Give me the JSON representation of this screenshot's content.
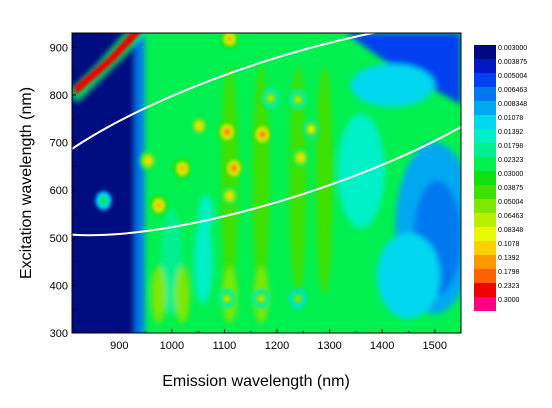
{
  "chart_data": {
    "type": "heatmap",
    "title": "",
    "xlabel": "Emission wavelength  (nm)",
    "ylabel": "Excitation wavelength  (nm)",
    "xlim": [
      810,
      1550
    ],
    "ylim": [
      300,
      930
    ],
    "x_ticks": [
      900,
      1000,
      1100,
      1200,
      1300,
      1400,
      1500
    ],
    "y_ticks": [
      300,
      400,
      500,
      600,
      700,
      800,
      900
    ],
    "legend_position": "right",
    "color_levels": [
      {
        "label": "0.003000",
        "color": "#000a80"
      },
      {
        "label": "0.003875",
        "color": "#0018c8"
      },
      {
        "label": "0.005004",
        "color": "#0040f0"
      },
      {
        "label": "0.006463",
        "color": "#0078f0"
      },
      {
        "label": "0.008348",
        "color": "#00a8f0"
      },
      {
        "label": "0.01078",
        "color": "#00d8f0"
      },
      {
        "label": "0.01392",
        "color": "#00f0c8"
      },
      {
        "label": "0.01798",
        "color": "#00f090"
      },
      {
        "label": "0.02323",
        "color": "#00f050"
      },
      {
        "label": "0.03000",
        "color": "#10e010"
      },
      {
        "label": "0.03875",
        "color": "#40e000"
      },
      {
        "label": "0.05004",
        "color": "#80e800"
      },
      {
        "label": "0.06463",
        "color": "#b8f000"
      },
      {
        "label": "0.08348",
        "color": "#e8f800"
      },
      {
        "label": "0.1078",
        "color": "#ffd000"
      },
      {
        "label": "0.1392",
        "color": "#ff9800"
      },
      {
        "label": "0.1798",
        "color": "#ff6000"
      },
      {
        "label": "0.2323",
        "color": "#f00000"
      },
      {
        "label": "0.3000",
        "color": "#ff0080"
      }
    ],
    "peaks": [
      {
        "x": 955,
        "y": 662,
        "level": 14
      },
      {
        "x": 975,
        "y": 568,
        "level": 15
      },
      {
        "x": 1020,
        "y": 645,
        "level": 15
      },
      {
        "x": 1052,
        "y": 735,
        "level": 14
      },
      {
        "x": 1105,
        "y": 722,
        "level": 16
      },
      {
        "x": 1118,
        "y": 646,
        "level": 16
      },
      {
        "x": 1110,
        "y": 588,
        "level": 14
      },
      {
        "x": 1172,
        "y": 717,
        "level": 16
      },
      {
        "x": 1245,
        "y": 668,
        "level": 14
      },
      {
        "x": 1265,
        "y": 728,
        "level": 13
      },
      {
        "x": 1188,
        "y": 793,
        "level": 12
      },
      {
        "x": 1240,
        "y": 790,
        "level": 12
      },
      {
        "x": 1110,
        "y": 918,
        "level": 15
      },
      {
        "x": 870,
        "y": 578,
        "level": 9
      },
      {
        "x": 1105,
        "y": 372,
        "level": 12
      },
      {
        "x": 1170,
        "y": 372,
        "level": 12
      },
      {
        "x": 1240,
        "y": 372,
        "level": 11
      }
    ],
    "ellipses": [
      {
        "center": [
          1210,
          730
        ],
        "semi_axes": [
          520,
          145
        ],
        "angle_deg": 18
      }
    ]
  }
}
